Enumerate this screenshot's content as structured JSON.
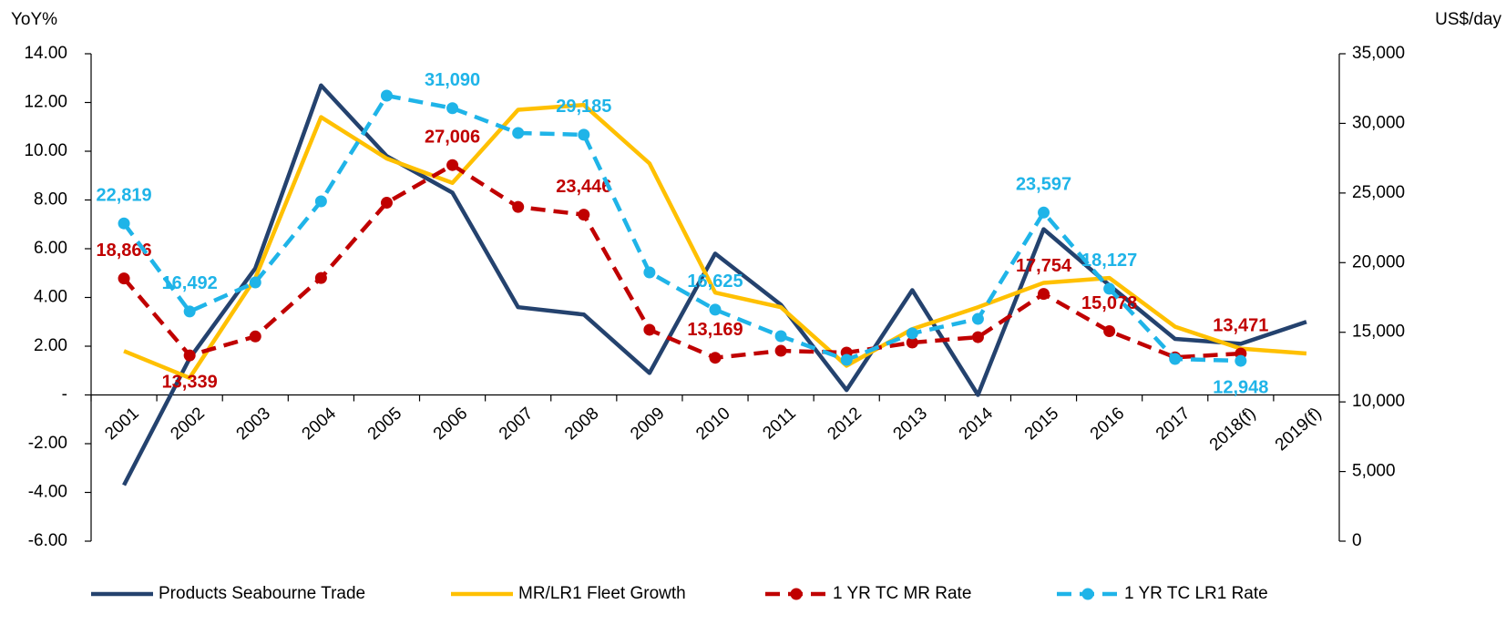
{
  "chart_data": {
    "type": "line",
    "y_label": "YoY%",
    "y2_label": "US$/day",
    "categories": [
      "2001",
      "2002",
      "2003",
      "2004",
      "2005",
      "2006",
      "2007",
      "2008",
      "2009",
      "2010",
      "2011",
      "2012",
      "2013",
      "2014",
      "2015",
      "2016",
      "2017",
      "2018(f)",
      "2019(f)"
    ],
    "ylim": [
      -6,
      14
    ],
    "yticks": [
      {
        "value": -6,
        "label": "-6.00"
      },
      {
        "value": -4,
        "label": "-4.00"
      },
      {
        "value": -2,
        "label": "-2.00"
      },
      {
        "value": 0,
        "label": "-"
      },
      {
        "value": 2,
        "label": "2.00"
      },
      {
        "value": 4,
        "label": "4.00"
      },
      {
        "value": 6,
        "label": "6.00"
      },
      {
        "value": 8,
        "label": "8.00"
      },
      {
        "value": 10,
        "label": "10.00"
      },
      {
        "value": 12,
        "label": "12.00"
      },
      {
        "value": 14,
        "label": "14.00"
      }
    ],
    "y2lim": [
      0,
      35000
    ],
    "y2ticks": [
      0,
      {
        "value": 5000,
        "label": "5,000"
      },
      {
        "value": 10000,
        "label": "10,000"
      },
      {
        "value": 15000,
        "label": "15,000"
      },
      {
        "value": 20000,
        "label": "20,000"
      },
      {
        "value": 25000,
        "label": "25,000"
      },
      {
        "value": 30000,
        "label": "30,000"
      },
      {
        "value": 35000,
        "label": "35,000"
      }
    ],
    "series": [
      {
        "name": "Products Seabourne Trade",
        "color": "#24426e",
        "style": "solid",
        "values": [
          -3.7,
          1.5,
          5.2,
          12.7,
          9.8,
          8.3,
          3.6,
          3.3,
          0.9,
          5.8,
          3.7,
          0.2,
          4.3,
          0.0,
          6.8,
          4.5,
          2.3,
          2.1,
          3.0
        ]
      },
      {
        "name": "MR/LR1 Fleet Growth",
        "color": "#ffc000",
        "style": "solid",
        "values": [
          1.8,
          0.7,
          4.8,
          11.4,
          9.7,
          8.7,
          11.7,
          11.9,
          9.5,
          4.2,
          3.6,
          1.2,
          2.7,
          3.6,
          4.6,
          4.8,
          2.8,
          1.9,
          1.7
        ]
      },
      {
        "name": "1 YR TC MR Rate",
        "color": "#c00000",
        "style": "dashed",
        "axis": "y2",
        "values": [
          18866,
          13339,
          14700,
          18900,
          24300,
          27006,
          24000,
          23446,
          15180,
          13169,
          13670,
          13540,
          14260,
          14650,
          17754,
          15078,
          13200,
          13471,
          null
        ],
        "value_labels": [
          "18,866",
          "13,339",
          null,
          null,
          null,
          "27,006",
          null,
          "23,446",
          null,
          "13,169",
          null,
          null,
          null,
          null,
          "17,754",
          "15,078",
          null,
          "13,471",
          null
        ]
      },
      {
        "name": "1 YR TC LR1 Rate",
        "color": "#1fb4e8",
        "style": "dashed",
        "axis": "y2",
        "values": [
          22819,
          16492,
          18580,
          24400,
          31990,
          31090,
          29310,
          29185,
          19300,
          16625,
          14720,
          13020,
          14920,
          15960,
          23597,
          18127,
          13084,
          12948,
          null
        ],
        "value_labels": [
          "22,819",
          "16,492",
          null,
          null,
          null,
          "31,090",
          null,
          "29,185",
          null,
          "16,625",
          null,
          null,
          null,
          null,
          "23,597",
          "18,127",
          null,
          "12,948",
          null
        ]
      }
    ]
  }
}
